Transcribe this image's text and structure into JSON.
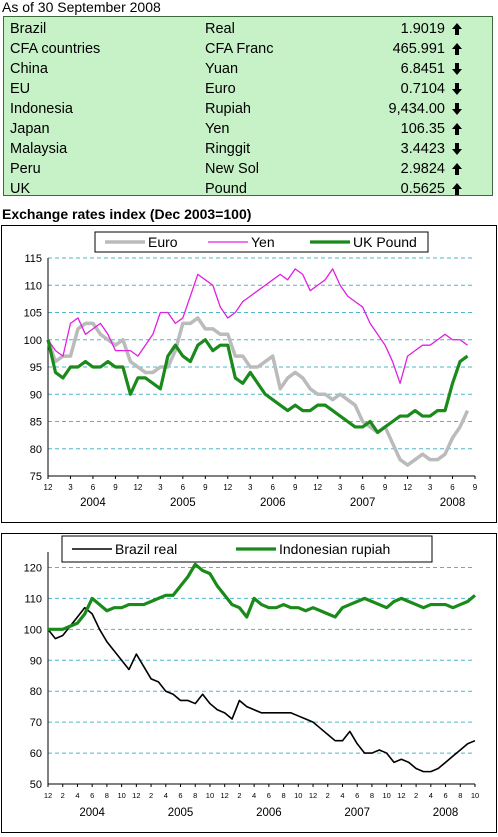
{
  "as_of": "As of 30 September 2008",
  "rates": [
    {
      "country": "Brazil",
      "currency": "Real",
      "value": "1.9019",
      "direction": "up"
    },
    {
      "country": "CFA countries",
      "currency": "CFA Franc",
      "value": "465.991",
      "direction": "up"
    },
    {
      "country": "China",
      "currency": "Yuan",
      "value": "6.8451",
      "direction": "down"
    },
    {
      "country": "EU",
      "currency": "Euro",
      "value": "0.7104",
      "direction": "down"
    },
    {
      "country": "Indonesia",
      "currency": "Rupiah",
      "value": "9,434.00",
      "direction": "down"
    },
    {
      "country": "Japan",
      "currency": "Yen",
      "value": "106.35",
      "direction": "up"
    },
    {
      "country": "Malaysia",
      "currency": "Ringgit",
      "value": "3.4423",
      "direction": "down"
    },
    {
      "country": "Peru",
      "currency": "New Sol",
      "value": "2.9824",
      "direction": "up"
    },
    {
      "country": "UK",
      "currency": "Pound",
      "value": "0.5625",
      "direction": "up"
    }
  ],
  "index_title": "Exchange rates index (Dec 2003=100)",
  "chart_data": [
    {
      "type": "line",
      "ylim": [
        75,
        115
      ],
      "yticks": [
        75,
        80,
        85,
        90,
        95,
        100,
        105,
        110,
        115
      ],
      "month_ticks": [
        "12",
        "3",
        "6",
        "9",
        "12",
        "3",
        "6",
        "9",
        "12",
        "3",
        "6",
        "9",
        "12",
        "3",
        "6",
        "9",
        "12",
        "3",
        "6",
        "9"
      ],
      "years": [
        "2004",
        "2005",
        "2006",
        "2007",
        "2008"
      ],
      "x_range_months": [
        0,
        57
      ],
      "grid": "horizontal dashed",
      "legend_position": "top",
      "series": [
        {
          "name": "Euro",
          "color": "#bbbbbb",
          "width": 3.5,
          "values": [
            100,
            96,
            97,
            97,
            102,
            103,
            103,
            101,
            100,
            99,
            100,
            96,
            95,
            94,
            94,
            95,
            95,
            98,
            103,
            103,
            104,
            102,
            102,
            101,
            101,
            97,
            97,
            95,
            95,
            96,
            97,
            91,
            93,
            94,
            93,
            91,
            90,
            90,
            89,
            90,
            89,
            88,
            85,
            84,
            83,
            84,
            81,
            78,
            77,
            78,
            79,
            78,
            78,
            79,
            82,
            84,
            87
          ]
        },
        {
          "name": "Yen",
          "color": "#e020e0",
          "width": 1.3,
          "values": [
            100,
            98,
            97,
            103,
            104,
            101,
            102,
            103,
            101,
            98,
            98,
            98,
            97,
            99,
            101,
            105,
            105,
            103,
            104,
            108,
            112,
            111,
            110,
            106,
            104,
            105,
            107,
            108,
            109,
            110,
            111,
            112,
            111,
            113,
            112,
            109,
            110,
            111,
            113,
            110,
            108,
            107,
            106,
            103,
            101,
            99,
            96,
            92,
            97,
            98,
            99,
            99,
            100,
            101,
            100,
            100,
            99
          ]
        },
        {
          "name": "UK Pound",
          "color": "#1a8a1a",
          "width": 3.2,
          "values": [
            100,
            94,
            93,
            95,
            95,
            96,
            95,
            95,
            96,
            95,
            95,
            90,
            93,
            93,
            92,
            91,
            97,
            99,
            97,
            96,
            99,
            100,
            98,
            99,
            99,
            93,
            92,
            94,
            92,
            90,
            89,
            88,
            87,
            88,
            87,
            87,
            88,
            88,
            87,
            86,
            85,
            84,
            84,
            85,
            83,
            84,
            85,
            86,
            86,
            87,
            86,
            86,
            87,
            87,
            92,
            96,
            97
          ]
        }
      ]
    },
    {
      "type": "line",
      "ylim": [
        50,
        125
      ],
      "yticks": [
        50,
        60,
        70,
        80,
        90,
        100,
        110,
        120
      ],
      "month_ticks": [
        "12",
        "2",
        "4",
        "6",
        "8",
        "10",
        "12",
        "2",
        "4",
        "6",
        "8",
        "10",
        "12",
        "2",
        "4",
        "6",
        "8",
        "10",
        "12",
        "2",
        "4",
        "6",
        "8",
        "10",
        "12",
        "2",
        "4",
        "6",
        "8",
        "10"
      ],
      "years": [
        "2004",
        "2005",
        "2006",
        "2007",
        "2008"
      ],
      "x_range_months": [
        0,
        58
      ],
      "grid": "horizontal dashed",
      "legend_position": "top",
      "series": [
        {
          "name": "Brazil real",
          "color": "#000000",
          "width": 1.6,
          "values": [
            100,
            97,
            98,
            101,
            104,
            107,
            105,
            100,
            96,
            93,
            90,
            87,
            92,
            88,
            84,
            83,
            80,
            79,
            77,
            77,
            76,
            79,
            76,
            74,
            73,
            71,
            77,
            75,
            74,
            73,
            73,
            73,
            73,
            73,
            72,
            71,
            70,
            68,
            66,
            64,
            64,
            67,
            63,
            60,
            60,
            61,
            60,
            57,
            58,
            57,
            55,
            54,
            54,
            55,
            57,
            59,
            61,
            63,
            64
          ]
        },
        {
          "name": "Indonesian rupiah",
          "color": "#1a8a1a",
          "width": 3.2,
          "values": [
            100,
            100,
            100,
            101,
            102,
            105,
            110,
            108,
            106,
            107,
            107,
            108,
            108,
            108,
            109,
            110,
            111,
            111,
            114,
            117,
            121,
            119,
            118,
            114,
            111,
            108,
            107,
            104,
            110,
            108,
            107,
            107,
            108,
            107,
            107,
            106,
            107,
            106,
            105,
            104,
            107,
            108,
            109,
            110,
            109,
            108,
            107,
            109,
            110,
            109,
            108,
            107,
            108,
            108,
            108,
            107,
            108,
            109,
            111
          ]
        }
      ]
    }
  ]
}
